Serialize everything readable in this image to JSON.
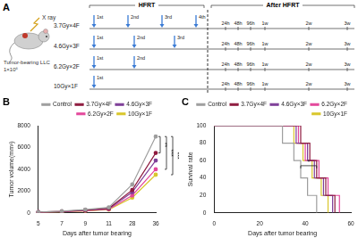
{
  "panel_a": {
    "label": "A",
    "xray": "X ray",
    "tumor": [
      "Tumor-bearing LLC",
      "1×10⁶"
    ],
    "phases": [
      "HFRT",
      "After HFRT"
    ],
    "regimens": [
      {
        "name": "3.7Gy×4F",
        "fractions": [
          "1st",
          "2nd",
          "3rd",
          "4th"
        ]
      },
      {
        "name": "4.6Gy×3F",
        "fractions": [
          "1st",
          "2nd",
          "3rd"
        ]
      },
      {
        "name": "6.2Gy×2F",
        "fractions": [
          "1st",
          "2nd"
        ]
      },
      {
        "name": "10Gy×1F",
        "fractions": [
          "1st"
        ]
      }
    ],
    "timepoints": [
      "24h",
      "48h",
      "96h",
      "1w",
      "2w",
      "3w"
    ]
  },
  "chart_data": [
    {
      "panel": "B",
      "type": "line",
      "x_label": "Days after tumor bearing",
      "y_label": "Tumor volume(mm³)",
      "categories": [
        "5",
        "7",
        "9",
        "11",
        "28",
        "36"
      ],
      "series": [
        {
          "name": "Control",
          "color": "#9e9e9e",
          "values": [
            80,
            150,
            300,
            500,
            2600,
            7000
          ]
        },
        {
          "name": "3.7Gy×4F",
          "color": "#8e1b3f",
          "values": [
            70,
            130,
            250,
            420,
            2100,
            5500
          ]
        },
        {
          "name": "4.6Gy×3F",
          "color": "#7e3f98",
          "values": [
            70,
            120,
            230,
            380,
            1900,
            4800
          ]
        },
        {
          "name": "6.2Gy×2F",
          "color": "#e3479b",
          "values": [
            60,
            110,
            200,
            340,
            1600,
            4000
          ]
        },
        {
          "name": "10Gy×1F",
          "color": "#d9c62b",
          "values": [
            60,
            100,
            180,
            300,
            1400,
            3500
          ]
        }
      ],
      "ylim": [
        0,
        8000
      ],
      "yticks": [
        0,
        2000,
        4000,
        6000,
        8000
      ],
      "marker": "circle",
      "grid": false,
      "legend": "top",
      "annotations": [
        {
          "text": "**",
          "between": [
            "Control",
            "3.7Gy×4F"
          ]
        },
        {
          "text": "***",
          "between": [
            "Control",
            "6.2Gy×2F"
          ]
        },
        {
          "text": "***",
          "between": [
            "Control",
            "10Gy×1F"
          ]
        }
      ]
    },
    {
      "panel": "C",
      "type": "line",
      "x_label": "Days after tumor bearing",
      "y_label": "Survival rate",
      "series": [
        {
          "name": "Control",
          "color": "#9e9e9e",
          "x": [
            0,
            30,
            35,
            38,
            41,
            45
          ],
          "values": [
            100,
            80,
            60,
            40,
            20,
            0
          ]
        },
        {
          "name": "3.7Gy×4F",
          "color": "#8e1b3f",
          "x": [
            0,
            38,
            42,
            45,
            49,
            53
          ],
          "values": [
            100,
            80,
            60,
            40,
            20,
            0
          ]
        },
        {
          "name": "4.6Gy×3F",
          "color": "#7e3f98",
          "x": [
            0,
            36,
            41,
            44,
            48,
            52
          ],
          "values": [
            100,
            80,
            60,
            40,
            20,
            0
          ]
        },
        {
          "name": "6.2Gy×2F",
          "color": "#e3479b",
          "x": [
            0,
            37,
            40,
            46,
            50,
            55
          ],
          "values": [
            100,
            80,
            60,
            40,
            20,
            0
          ]
        },
        {
          "name": "10Gy×1F",
          "color": "#d9c62b",
          "x": [
            0,
            35,
            39,
            43,
            47,
            50
          ],
          "values": [
            100,
            80,
            60,
            40,
            20,
            0
          ]
        }
      ],
      "xlim": [
        0,
        60
      ],
      "xticks": [
        0,
        20,
        40,
        60
      ],
      "ylim": [
        0,
        100
      ],
      "yticks": [
        0,
        20,
        40,
        60,
        80,
        100
      ],
      "line_style": "stepped",
      "marker": "none",
      "grid": false,
      "legend": "top",
      "annotations": [
        {
          "text": "*",
          "between": [
            "Control",
            "3.7Gy×4F"
          ]
        }
      ]
    }
  ]
}
